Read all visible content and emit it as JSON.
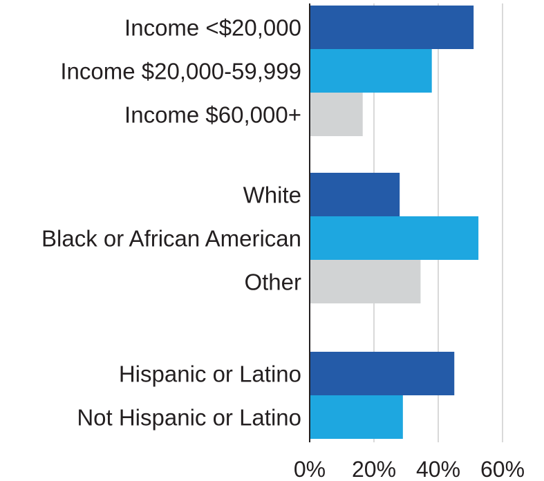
{
  "colors": {
    "dark_blue": "#245ba8",
    "light_blue": "#1ea7e0",
    "gray": "#d1d3d4",
    "grid": "#d9d9d9",
    "axis": "#231f20",
    "text": "#231f20"
  },
  "chart_data": {
    "type": "bar",
    "orientation": "horizontal",
    "title": "",
    "xlabel": "",
    "ylabel": "",
    "xlim": [
      0,
      60
    ],
    "x_ticks": [
      "0%",
      "20%",
      "40%",
      "60%"
    ],
    "grid": true,
    "groups": [
      {
        "bars": [
          {
            "label": "Income <$20,000",
            "value": 51,
            "color": "#245ba8"
          },
          {
            "label": "Income $20,000-59,999",
            "value": 38,
            "color": "#1ea7e0"
          },
          {
            "label": "Income $60,000+",
            "value": 16.5,
            "color": "#d1d3d4"
          }
        ]
      },
      {
        "bars": [
          {
            "label": "White",
            "value": 28,
            "color": "#245ba8"
          },
          {
            "label": "Black or African American",
            "value": 52.5,
            "color": "#1ea7e0"
          },
          {
            "label": "Other",
            "value": 34.5,
            "color": "#d1d3d4"
          }
        ]
      },
      {
        "bars": [
          {
            "label": "Hispanic or Latino",
            "value": 45,
            "color": "#245ba8"
          },
          {
            "label": "Not Hispanic or Latino",
            "value": 29,
            "color": "#1ea7e0"
          }
        ]
      }
    ]
  }
}
